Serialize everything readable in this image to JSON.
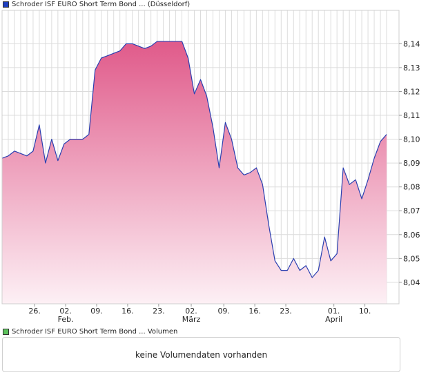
{
  "price_legend": {
    "label": "Schroder ISF EURO Short Term Bond ... (Düsseldorf)",
    "color": "#1f3fbf"
  },
  "volume_legend": {
    "label": "Schroder ISF EURO Short Term Bond ... Volumen",
    "color": "#5cc25c"
  },
  "volume_panel": {
    "message": "keine Volumendaten vorhanden"
  },
  "colors": {
    "line": "#2a3fb0",
    "fill_top": "#e05a8a",
    "fill_bottom": "#fdf0f5",
    "grid": "#dcdcdc",
    "frame": "#cfcfcf"
  },
  "chart_data": {
    "type": "area",
    "title": "",
    "xlabel": "",
    "ylabel": "",
    "ylim": [
      8.031,
      8.154
    ],
    "xlim": [
      0,
      64
    ],
    "y_ticks": [
      "8,04",
      "8,05",
      "8,06",
      "8,07",
      "8,08",
      "8,09",
      "8,10",
      "8,11",
      "8,12",
      "8,13",
      "8,14"
    ],
    "y_tick_values": [
      8.04,
      8.05,
      8.06,
      8.07,
      8.08,
      8.09,
      8.1,
      8.11,
      8.12,
      8.13,
      8.14
    ],
    "x_ticks": [
      {
        "i": 5.25,
        "label": "26.",
        "month": ""
      },
      {
        "i": 10.25,
        "label": "02.",
        "month": "Feb."
      },
      {
        "i": 15.25,
        "label": "09.",
        "month": ""
      },
      {
        "i": 20.25,
        "label": "16.",
        "month": ""
      },
      {
        "i": 25.25,
        "label": "23.",
        "month": ""
      },
      {
        "i": 30.5,
        "label": "02.",
        "month": "März"
      },
      {
        "i": 35.75,
        "label": "09.",
        "month": ""
      },
      {
        "i": 40.75,
        "label": "16.",
        "month": ""
      },
      {
        "i": 45.75,
        "label": "23.",
        "month": ""
      },
      {
        "i": 53.5,
        "label": "01.",
        "month": "April"
      },
      {
        "i": 58.5,
        "label": "10.",
        "month": ""
      }
    ],
    "series": [
      {
        "name": "Schroder ISF EURO Short Term Bond ... (Düsseldorf)",
        "values": [
          8.092,
          8.093,
          8.095,
          8.094,
          8.093,
          8.095,
          8.106,
          8.09,
          8.1,
          8.091,
          8.098,
          8.1,
          8.1,
          8.1,
          8.102,
          8.129,
          8.134,
          8.135,
          8.136,
          8.137,
          8.14,
          8.14,
          8.139,
          8.138,
          8.139,
          8.141,
          8.141,
          8.141,
          8.141,
          8.141,
          8.134,
          8.119,
          8.125,
          8.118,
          8.105,
          8.088,
          8.107,
          8.1,
          8.088,
          8.085,
          8.086,
          8.088,
          8.081,
          8.064,
          8.049,
          8.045,
          8.045,
          8.05,
          8.045,
          8.047,
          8.042,
          8.045,
          8.059,
          8.049,
          8.052,
          8.088,
          8.081,
          8.083,
          8.075,
          8.083,
          8.092,
          8.099,
          8.102
        ]
      }
    ]
  }
}
